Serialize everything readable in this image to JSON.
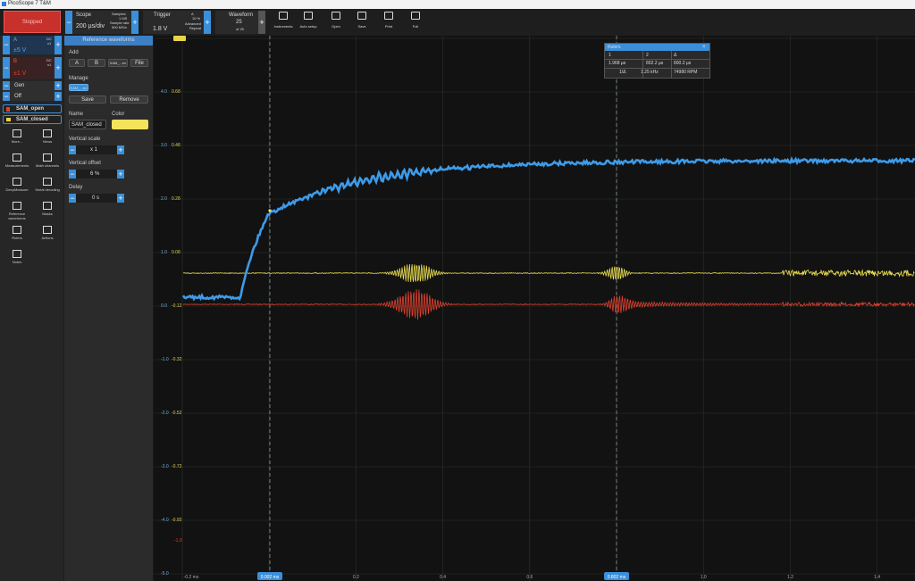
{
  "window": {
    "title": "PicoScope 7 T&M"
  },
  "toolbar": {
    "run_state": "Stopped",
    "scope": {
      "label": "Scope",
      "timebase": "200 µs/div",
      "samples_label": "Samples",
      "samples": "1 MS",
      "rate_label": "Sample rate",
      "rate": "500 MS/s"
    },
    "trigger": {
      "label": "Trigger",
      "source": "A",
      "threshold": "10 %",
      "level": "1.8 V",
      "type": "Advanced",
      "mode": "Repeat"
    },
    "waveform": {
      "label": "Waveform",
      "index": "25",
      "count": "of 25"
    },
    "tools": [
      "Instruments",
      "Auto setup",
      "Open",
      "Save",
      "Print",
      "Full"
    ]
  },
  "channels": [
    {
      "name": "A",
      "coupling": "DC",
      "probe": "x1",
      "range": "±5 V"
    },
    {
      "name": "B",
      "coupling": "DC",
      "probe": "x1",
      "range": "±1 V"
    }
  ],
  "generator": {
    "name": "Gen",
    "state": "Off"
  },
  "references": [
    "SAM_open",
    "SAM_closed"
  ],
  "side_tools": [
    "More...",
    "Views",
    "Measurements",
    "Math channels",
    "DeepMeasure",
    "Serial decoding",
    "Reference waveforms",
    "Masks",
    "Rulers",
    "Actions",
    "Notes"
  ],
  "reference_panel": {
    "title": "Reference waveforms",
    "add_label": "Add",
    "add_buttons": [
      "A",
      "B",
      "SAM_...en",
      "File"
    ],
    "manage_label": "Manage",
    "manage_item": "SAM_...en",
    "save": "Save",
    "remove": "Remove",
    "name_label": "Name",
    "name_value": "SAM_closed",
    "color_label": "Color",
    "vertical_scale_label": "Vertical scale",
    "vertical_scale": "x 1",
    "vertical_offset_label": "Vertical offset",
    "vertical_offset": "6 %",
    "delay_label": "Delay",
    "delay": "0 s"
  },
  "plot": {
    "y_labels_a": [
      "4.0",
      "3.0",
      "2.0",
      "1.0",
      "0.0",
      "-1.0",
      "-2.0",
      "-3.0",
      "-4.0",
      "-5.0"
    ],
    "y_labels_b": [
      "0.68",
      "0.48",
      "0.28",
      "0.08",
      "-0.12",
      "-0.32",
      "-0.52",
      "-0.72",
      "-0.92"
    ],
    "y_label_extra": "-1.0",
    "x_labels": [
      "-0.2 ms",
      null,
      "0.2",
      "0.4",
      "0.6",
      null,
      "1.0",
      "1.2",
      "1.4"
    ],
    "ruler_labels": [
      "0.002 ms",
      "0.802 ms"
    ]
  },
  "rulers": {
    "title": "Rulers",
    "headers": [
      "1",
      "2",
      "Δ"
    ],
    "values": [
      "1.968 µs",
      "802.2 µs",
      "800.2 µs"
    ],
    "inverse_label": "1/Δ",
    "frequency": "1.25 kHz",
    "rpm": "74980 RPM"
  }
}
